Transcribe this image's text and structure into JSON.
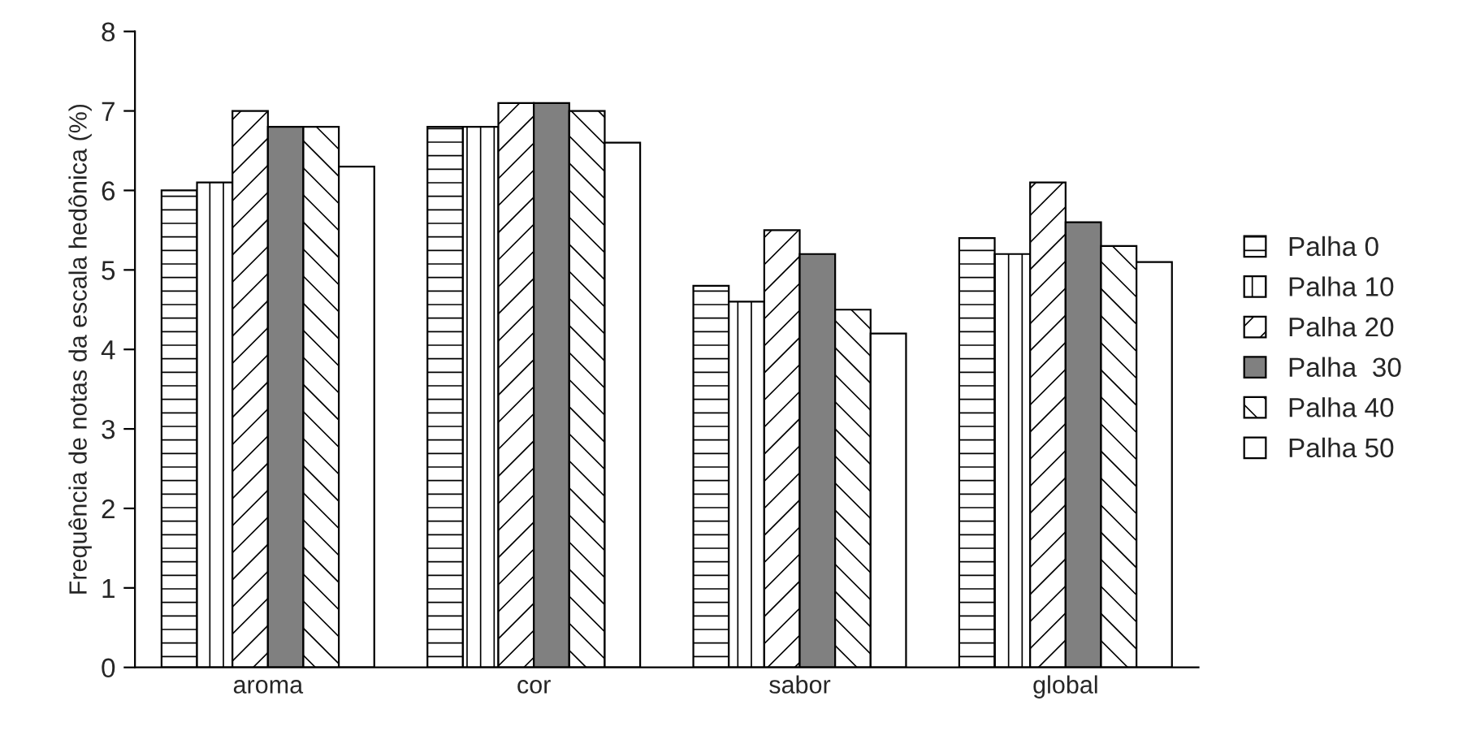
{
  "chart_data": {
    "type": "bar",
    "ylabel": "Frequência de notas da escala hedônica (%)",
    "categories": [
      "aroma",
      "cor",
      "sabor",
      "global"
    ],
    "series": [
      {
        "name": "Palha 0",
        "color": "#000000",
        "values": [
          6.0,
          6.8,
          4.8,
          5.4
        ]
      },
      {
        "name": "Palha 10",
        "color": "#000000",
        "values": [
          6.1,
          6.8,
          4.6,
          5.2
        ]
      },
      {
        "name": "Palha 20",
        "color": "#000000",
        "values": [
          7.0,
          7.1,
          5.5,
          6.1
        ]
      },
      {
        "name": "Palha  30",
        "color": "#808080",
        "values": [
          6.8,
          7.1,
          5.2,
          5.6
        ]
      },
      {
        "name": "Palha 40",
        "color": "#000000",
        "values": [
          6.8,
          7.0,
          4.5,
          5.3
        ]
      },
      {
        "name": "Palha 50",
        "color": "#ffffff",
        "values": [
          6.3,
          6.6,
          4.2,
          5.1
        ]
      }
    ],
    "ylim": [
      0,
      8
    ],
    "yticks": [
      0,
      1,
      2,
      3,
      4,
      5,
      6,
      7,
      8
    ],
    "grid": false,
    "legend": "right"
  }
}
